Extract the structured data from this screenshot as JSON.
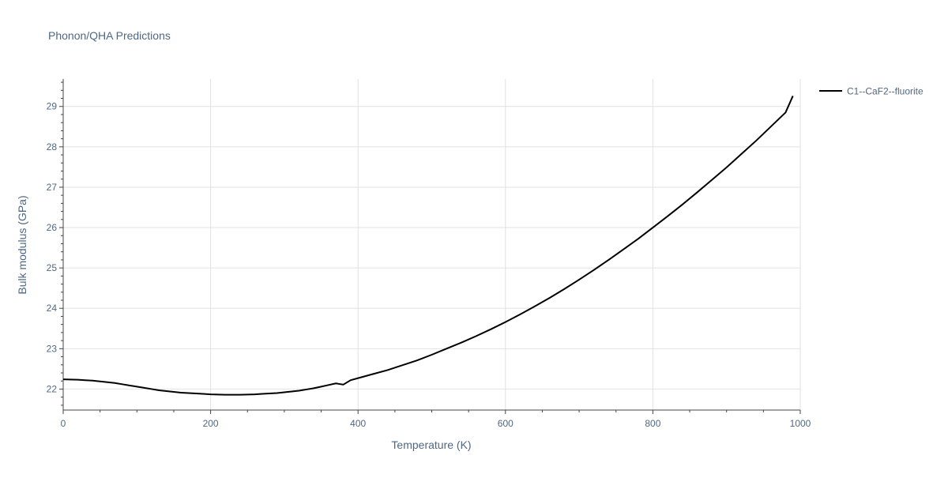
{
  "chart_data": {
    "type": "line",
    "title": "Phonon/QHA Predictions",
    "xlabel": "Temperature (K)",
    "ylabel": "Bulk modulus (GPa)",
    "xlim": [
      0,
      1000
    ],
    "ylim": [
      21.48,
      29.68
    ],
    "x_ticks": [
      0,
      200,
      400,
      600,
      800,
      1000
    ],
    "y_ticks": [
      22,
      23,
      24,
      25,
      26,
      27,
      28,
      29
    ],
    "grid": true,
    "legend_position": "top-right",
    "series": [
      {
        "name": "C1--CaF2--fluorite",
        "color": "#000000",
        "x": [
          0,
          10,
          20,
          30,
          40,
          50,
          60,
          70,
          80,
          90,
          100,
          110,
          120,
          130,
          140,
          150,
          160,
          170,
          180,
          190,
          200,
          210,
          220,
          230,
          240,
          250,
          260,
          270,
          280,
          290,
          300,
          310,
          320,
          330,
          340,
          350,
          360,
          370,
          380,
          390,
          400,
          420,
          440,
          460,
          480,
          500,
          520,
          540,
          560,
          580,
          600,
          620,
          640,
          660,
          680,
          700,
          720,
          740,
          760,
          780,
          800,
          820,
          840,
          860,
          880,
          900,
          920,
          940,
          960,
          980,
          990
        ],
        "y": [
          22.24,
          22.235,
          22.23,
          22.22,
          22.21,
          22.19,
          22.17,
          22.15,
          22.12,
          22.09,
          22.06,
          22.03,
          22.0,
          21.97,
          21.95,
          21.93,
          21.91,
          21.9,
          21.89,
          21.88,
          21.87,
          21.865,
          21.86,
          21.86,
          21.86,
          21.865,
          21.87,
          21.88,
          21.89,
          21.9,
          21.92,
          21.94,
          21.96,
          21.99,
          22.02,
          22.06,
          22.1,
          22.14,
          22.11,
          22.22,
          22.27,
          22.37,
          22.47,
          22.59,
          22.71,
          22.85,
          23.0,
          23.15,
          23.31,
          23.48,
          23.66,
          23.85,
          24.05,
          24.26,
          24.48,
          24.71,
          24.95,
          25.2,
          25.46,
          25.72,
          26.0,
          26.28,
          26.57,
          26.87,
          27.18,
          27.49,
          27.82,
          28.15,
          28.5,
          28.85,
          29.26
        ]
      }
    ]
  }
}
